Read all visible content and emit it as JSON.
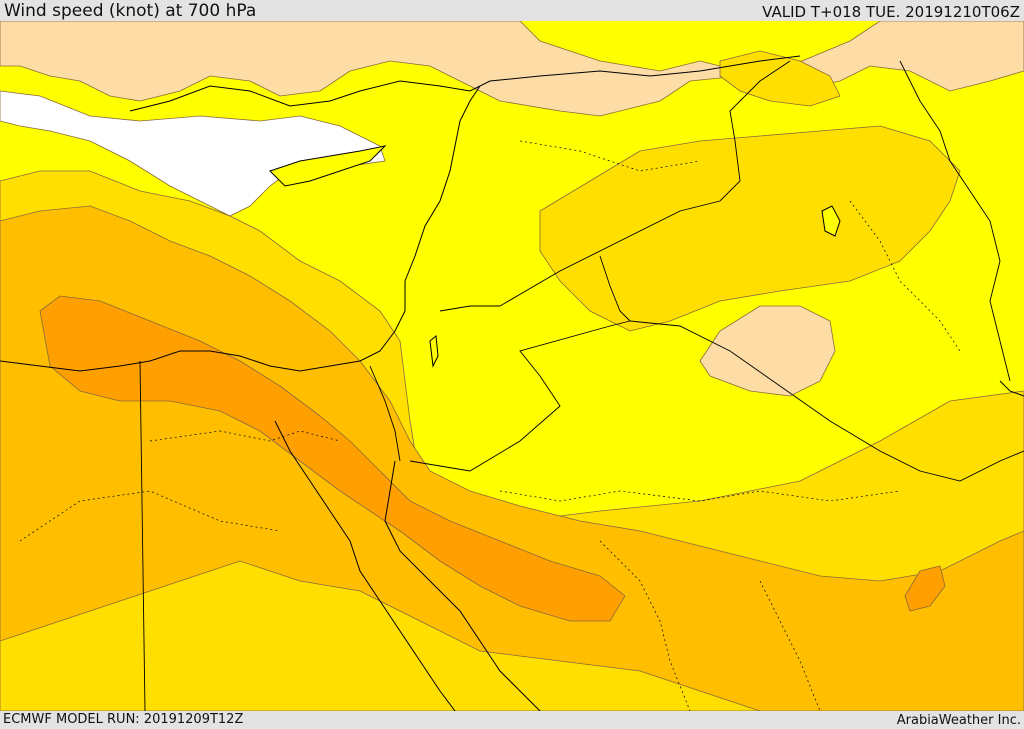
{
  "header": {
    "title": "Wind speed (knot) at 700 hPa",
    "valid_time": "VALID T+018 TUE. 20191210T06Z"
  },
  "footer": {
    "model_run": "ECMWF MODEL RUN: 20191209T12Z",
    "credit": "ArabiaWeather Inc."
  },
  "colors": {
    "white_band": "#ffffff",
    "light_band": "#fddca6",
    "yellow_band": "#ffff00",
    "gold_band": "#ffdf00",
    "amber_band": "#ffbf00",
    "orange_band": "#ff9f00",
    "contour_line": "#8a6a3a",
    "border_line": "#000000"
  },
  "map_layers": [
    "wind-speed-bands",
    "speed-contours",
    "coastlines",
    "country-borders",
    "admin-boundaries"
  ]
}
